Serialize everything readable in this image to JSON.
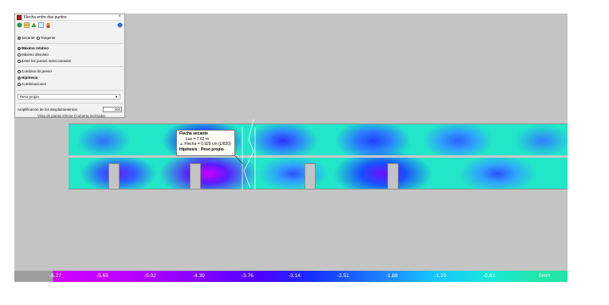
{
  "panel": {
    "title": "Flecha entre dos puntos",
    "close_glyph": "×",
    "toolbar_icons": [
      "green-circle-icon",
      "table-icon",
      "tree-icon",
      "list-icon",
      "person-icon"
    ],
    "mode_selected": "Secante",
    "mode_other": "Tangente",
    "option_max_relative": "Máximo relativo",
    "option_max_absolute": "Máximo absoluto",
    "option_between_points": "Entre los puntos seleccionados",
    "option_load_case": "Combina do previo",
    "option_hypothesis": "Hipótesis",
    "option_combinations": "Combinaciones",
    "combo_value": "Peso propio",
    "amplification_label": "Amplificación de los desplazamientos",
    "amplification_value": "200",
    "footer_text": "Vista de planta inferior (Cubierta inclinada)"
  },
  "tooltip": {
    "title": "Flecha secante",
    "span": "Luz = 7.62 m",
    "deflection": "Flecha = 0.929 cm (L/820)",
    "hypothesis": "Hipótesis : Peso propio"
  },
  "legend": {
    "labels": [
      "-6.27",
      "-5.65",
      "-5.02",
      "-4.39",
      "-3.76",
      "-3.14",
      "-2.51",
      "-1.88",
      "-1.25",
      "-0.63",
      "0mm"
    ]
  },
  "colors": {
    "max_negative": "#cf00ff",
    "mid": "#1530ff",
    "zero": "#22e6a8",
    "background": "#c4c4c4"
  }
}
